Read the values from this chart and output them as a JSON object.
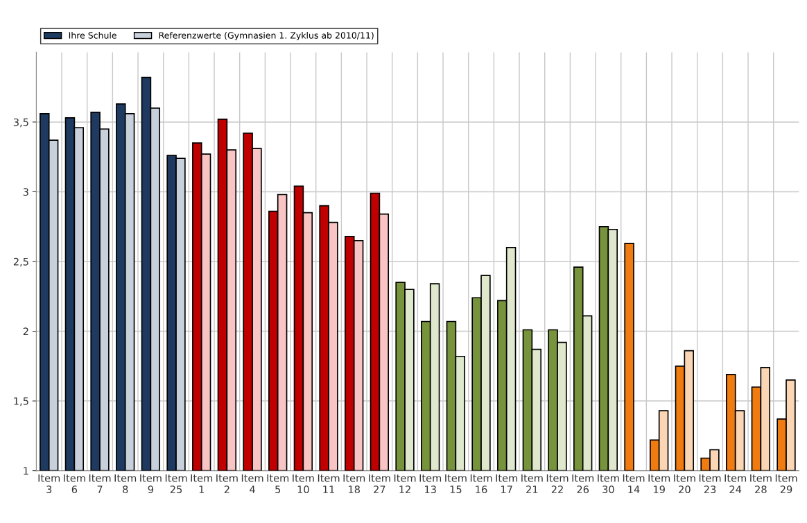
{
  "chart_data": {
    "type": "bar",
    "categories": [
      "Item 3",
      "Item 6",
      "Item 7",
      "Item 8",
      "Item 9",
      "Item 25",
      "Item 1",
      "Item 2",
      "Item 4",
      "Item 5",
      "Item 10",
      "Item 11",
      "Item 18",
      "Item 27",
      "Item 12",
      "Item 13",
      "Item 15",
      "Item 16",
      "Item 17",
      "Item 21",
      "Item 22",
      "Item 26",
      "Item 30",
      "Item 14",
      "Item 19",
      "Item 20",
      "Item 23",
      "Item 24",
      "Item 28",
      "Item 29"
    ],
    "series": [
      {
        "name": "Ihre Schule",
        "color": "#1f3a60",
        "colors": [
          "#1f3a60",
          "#1f3a60",
          "#1f3a60",
          "#1f3a60",
          "#1f3a60",
          "#1f3a60",
          "#c00000",
          "#c00000",
          "#c00000",
          "#c00000",
          "#c00000",
          "#c00000",
          "#c00000",
          "#c00000",
          "#77933c",
          "#77933c",
          "#77933c",
          "#77933c",
          "#77933c",
          "#77933c",
          "#77933c",
          "#77933c",
          "#77933c",
          "#f07b10",
          "#f07b10",
          "#f07b10",
          "#f07b10",
          "#f07b10",
          "#f07b10",
          "#f07b10"
        ],
        "values": [
          3.56,
          3.53,
          3.57,
          3.63,
          3.82,
          3.26,
          3.35,
          3.52,
          3.42,
          2.86,
          3.04,
          2.9,
          2.68,
          2.99,
          2.35,
          2.07,
          2.07,
          2.24,
          2.22,
          2.01,
          2.01,
          2.46,
          2.75,
          2.63,
          1.22,
          1.75,
          1.09,
          1.69,
          1.6,
          1.37
        ]
      },
      {
        "name": "Referenzwerte (Gymnasien 1. Zyklus ab 2010/11)",
        "color": "#c8d0dc",
        "colors": [
          "#c8d0dc",
          "#c8d0dc",
          "#c8d0dc",
          "#c8d0dc",
          "#c8d0dc",
          "#c8d0dc",
          "#f8c4c4",
          "#f8c4c4",
          "#f8c4c4",
          "#f8c4c4",
          "#f8c4c4",
          "#f8c4c4",
          "#f8c4c4",
          "#f8c4c4",
          "#dfe8cc",
          "#dfe8cc",
          "#dfe8cc",
          "#dfe8cc",
          "#dfe8cc",
          "#dfe8cc",
          "#dfe8cc",
          "#dfe8cc",
          "#dfe8cc",
          "#fad6b4",
          "#fad6b4",
          "#fad6b4",
          "#fad6b4",
          "#fad6b4",
          "#fad6b4",
          "#fad6b4"
        ],
        "values": [
          3.37,
          3.46,
          3.45,
          3.56,
          3.6,
          3.24,
          3.27,
          3.3,
          3.31,
          2.98,
          2.85,
          2.78,
          2.65,
          2.84,
          2.3,
          2.34,
          1.82,
          2.4,
          2.6,
          1.87,
          1.92,
          2.11,
          2.73,
          null,
          1.43,
          1.86,
          1.15,
          1.43,
          1.74,
          1.65
        ]
      }
    ],
    "ylim": [
      1,
      4
    ],
    "yticks": [
      1,
      {
        "value": 1.5,
        "label": "1,5"
      },
      2,
      {
        "value": 2.5,
        "label": "2,5"
      },
      3,
      {
        "value": 3.5,
        "label": "3,5"
      }
    ],
    "grid": true,
    "legend": "top left"
  }
}
